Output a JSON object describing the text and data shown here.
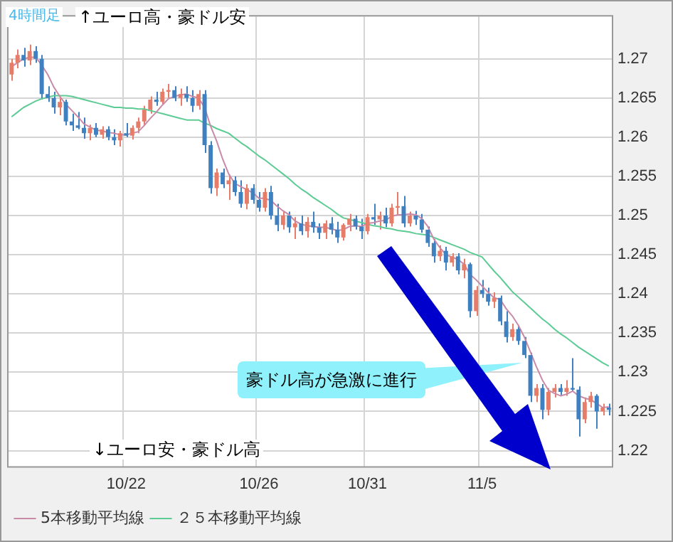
{
  "chart_data": {
    "type": "candlestick",
    "categories": [
      null,
      null,
      null,
      null,
      null,
      null,
      null,
      null,
      null,
      null,
      null,
      null,
      null,
      null,
      null,
      null,
      null,
      null,
      null,
      "10/22",
      null,
      null,
      null,
      null,
      null,
      null,
      null,
      null,
      null,
      null,
      null,
      null,
      null,
      null,
      null,
      null,
      null,
      null,
      null,
      null,
      null,
      "10/26",
      null,
      null,
      null,
      null,
      null,
      null,
      null,
      null,
      null,
      null,
      null,
      null,
      null,
      null,
      null,
      null,
      null,
      "10/31",
      null,
      null,
      null,
      null,
      null,
      null,
      null,
      null,
      null,
      null,
      null,
      null,
      null,
      null,
      null,
      null,
      null,
      null,
      "11/5",
      null,
      null,
      null,
      null,
      null,
      null,
      null,
      null,
      null,
      null,
      null,
      null,
      null,
      null,
      null,
      null,
      null,
      null,
      null,
      null,
      null
    ],
    "ohlc": [
      [
        1.268,
        1.27,
        1.2672,
        1.2695
      ],
      [
        1.2695,
        1.2712,
        1.2688,
        1.2705
      ],
      [
        1.2705,
        1.2714,
        1.269,
        1.2698
      ],
      [
        1.2698,
        1.2718,
        1.2692,
        1.271
      ],
      [
        1.271,
        1.2716,
        1.2695,
        1.27
      ],
      [
        1.27,
        1.2705,
        1.2648,
        1.2655
      ],
      [
        1.2655,
        1.2665,
        1.2645,
        1.265
      ],
      [
        1.265,
        1.2658,
        1.263,
        1.2638
      ],
      [
        1.2638,
        1.2652,
        1.2628,
        1.2645
      ],
      [
        1.2645,
        1.2648,
        1.2615,
        1.262
      ],
      [
        1.262,
        1.263,
        1.2608,
        1.2615
      ],
      [
        1.2615,
        1.2632,
        1.261,
        1.2612
      ],
      [
        1.2612,
        1.2625,
        1.2598,
        1.2605
      ],
      [
        1.2605,
        1.2616,
        1.2596,
        1.2612
      ],
      [
        1.2612,
        1.2618,
        1.26,
        1.2603
      ],
      [
        1.2603,
        1.2614,
        1.2598,
        1.261
      ],
      [
        1.261,
        1.2614,
        1.2596,
        1.26
      ],
      [
        1.26,
        1.261,
        1.259,
        1.2596
      ],
      [
        1.2596,
        1.2608,
        1.2588,
        1.2605
      ],
      [
        1.2605,
        1.2618,
        1.26,
        1.2602
      ],
      [
        1.2602,
        1.2615,
        1.2597,
        1.2612
      ],
      [
        1.2612,
        1.2625,
        1.2605,
        1.262
      ],
      [
        1.262,
        1.264,
        1.2615,
        1.2635
      ],
      [
        1.2635,
        1.2652,
        1.263,
        1.2648
      ],
      [
        1.2648,
        1.2658,
        1.264,
        1.2645
      ],
      [
        1.2645,
        1.2662,
        1.2642,
        1.2658
      ],
      [
        1.2658,
        1.2668,
        1.265,
        1.266
      ],
      [
        1.266,
        1.2665,
        1.2646,
        1.265
      ],
      [
        1.265,
        1.2662,
        1.264,
        1.2655
      ],
      [
        1.2655,
        1.2665,
        1.2645,
        1.265
      ],
      [
        1.265,
        1.266,
        1.2632,
        1.264
      ],
      [
        1.264,
        1.266,
        1.2635,
        1.2655
      ],
      [
        1.2655,
        1.266,
        1.258,
        1.259
      ],
      [
        1.259,
        1.2595,
        1.2528,
        1.2535
      ],
      [
        1.2535,
        1.256,
        1.2525,
        1.2555
      ],
      [
        1.2555,
        1.256,
        1.2535,
        1.254
      ],
      [
        1.254,
        1.2552,
        1.252,
        1.2545
      ],
      [
        1.2545,
        1.255,
        1.2525,
        1.253
      ],
      [
        1.253,
        1.2545,
        1.251,
        1.2515
      ],
      [
        1.2515,
        1.254,
        1.2508,
        1.2535
      ],
      [
        1.2535,
        1.254,
        1.2515,
        1.252
      ],
      [
        1.252,
        1.253,
        1.2505,
        1.251
      ],
      [
        1.251,
        1.2535,
        1.2505,
        1.253
      ],
      [
        1.253,
        1.2538,
        1.2495,
        1.25
      ],
      [
        1.25,
        1.2515,
        1.248,
        1.2488
      ],
      [
        1.2488,
        1.2505,
        1.2482,
        1.25
      ],
      [
        1.25,
        1.2505,
        1.2478,
        1.2485
      ],
      [
        1.2485,
        1.2498,
        1.247,
        1.249
      ],
      [
        1.249,
        1.25,
        1.2475,
        1.248
      ],
      [
        1.248,
        1.2498,
        1.2472,
        1.2492
      ],
      [
        1.2492,
        1.2505,
        1.2478,
        1.2485
      ],
      [
        1.2485,
        1.249,
        1.247,
        1.2478
      ],
      [
        1.2478,
        1.2494,
        1.247,
        1.249
      ],
      [
        1.249,
        1.2498,
        1.2476,
        1.2482
      ],
      [
        1.2482,
        1.2492,
        1.2465,
        1.2472
      ],
      [
        1.2472,
        1.249,
        1.2468,
        1.2488
      ],
      [
        1.2488,
        1.2502,
        1.248,
        1.2496
      ],
      [
        1.2496,
        1.25,
        1.2482,
        1.2486
      ],
      [
        1.2486,
        1.2496,
        1.247,
        1.248
      ],
      [
        1.248,
        1.2502,
        1.2476,
        1.2498
      ],
      [
        1.2498,
        1.2515,
        1.2488,
        1.2495
      ],
      [
        1.2495,
        1.2505,
        1.2482,
        1.25
      ],
      [
        1.25,
        1.251,
        1.2485,
        1.249
      ],
      [
        1.249,
        1.2515,
        1.2486,
        1.251
      ],
      [
        1.251,
        1.253,
        1.25,
        1.2512
      ],
      [
        1.2512,
        1.2525,
        1.2485,
        1.249
      ],
      [
        1.249,
        1.2505,
        1.2486,
        1.25
      ],
      [
        1.25,
        1.2506,
        1.2488,
        1.2495
      ],
      [
        1.2495,
        1.2502,
        1.2478,
        1.2482
      ],
      [
        1.2482,
        1.2486,
        1.246,
        1.2465
      ],
      [
        1.2465,
        1.247,
        1.244,
        1.2448
      ],
      [
        1.2448,
        1.2462,
        1.2442,
        1.2455
      ],
      [
        1.2455,
        1.246,
        1.243,
        1.244
      ],
      [
        1.244,
        1.2452,
        1.2435,
        1.2448
      ],
      [
        1.2448,
        1.2452,
        1.2425,
        1.243
      ],
      [
        1.243,
        1.2445,
        1.242,
        1.2438
      ],
      [
        1.2438,
        1.244,
        1.237,
        1.2378
      ],
      [
        1.2378,
        1.241,
        1.2372,
        1.2405
      ],
      [
        1.2405,
        1.2418,
        1.2395,
        1.24
      ],
      [
        1.24,
        1.2408,
        1.2385,
        1.239
      ],
      [
        1.239,
        1.2402,
        1.2382,
        1.2395
      ],
      [
        1.2395,
        1.2398,
        1.236,
        1.2365
      ],
      [
        1.2365,
        1.2378,
        1.2338,
        1.2345
      ],
      [
        1.2345,
        1.2362,
        1.234,
        1.2355
      ],
      [
        1.2355,
        1.236,
        1.2335,
        1.234
      ],
      [
        1.234,
        1.2345,
        1.2318,
        1.2322
      ],
      [
        1.2322,
        1.2325,
        1.2262,
        1.227
      ],
      [
        1.227,
        1.2285,
        1.2262,
        1.228
      ],
      [
        1.228,
        1.2285,
        1.224,
        1.2252
      ],
      [
        1.2252,
        1.228,
        1.2245,
        1.2275
      ],
      [
        1.2275,
        1.2285,
        1.2268,
        1.228
      ],
      [
        1.228,
        1.2285,
        1.227,
        1.2275
      ],
      [
        1.2275,
        1.229,
        1.227,
        1.228
      ],
      [
        1.228,
        1.2318,
        1.2275,
        1.2278
      ],
      [
        1.2278,
        1.2282,
        1.2218,
        1.224
      ],
      [
        1.224,
        1.2268,
        1.2235,
        1.2262
      ],
      [
        1.2262,
        1.2275,
        1.2255,
        1.227
      ],
      [
        1.227,
        1.2272,
        1.2228,
        1.225
      ],
      [
        1.225,
        1.226,
        1.2245,
        1.2255
      ],
      [
        1.2255,
        1.226,
        1.2245,
        1.2252
      ]
    ],
    "colors": [
      "#e67c6a",
      "#e67c6a",
      "#3f80c0",
      "#e67c6a",
      "#3f80c0",
      "#3f80c0",
      "#3f80c0",
      "#3f80c0",
      "#e67c6a",
      "#3f80c0",
      "#3f80c0",
      "#3f80c0",
      "#3f80c0",
      "#e67c6a",
      "#3f80c0",
      "#e67c6a",
      "#3f80c0",
      "#3f80c0",
      "#e67c6a",
      "#3f80c0",
      "#e67c6a",
      "#e67c6a",
      "#e67c6a",
      "#e67c6a",
      "#3f80c0",
      "#e67c6a",
      "#e67c6a",
      "#3f80c0",
      "#e67c6a",
      "#3f80c0",
      "#3f80c0",
      "#e67c6a",
      "#3f80c0",
      "#3f80c0",
      "#e67c6a",
      "#3f80c0",
      "#e67c6a",
      "#3f80c0",
      "#3f80c0",
      "#e67c6a",
      "#3f80c0",
      "#3f80c0",
      "#e67c6a",
      "#3f80c0",
      "#3f80c0",
      "#e67c6a",
      "#3f80c0",
      "#e67c6a",
      "#3f80c0",
      "#e67c6a",
      "#3f80c0",
      "#3f80c0",
      "#e67c6a",
      "#3f80c0",
      "#3f80c0",
      "#e67c6a",
      "#e67c6a",
      "#3f80c0",
      "#3f80c0",
      "#e67c6a",
      "#3f80c0",
      "#e67c6a",
      "#3f80c0",
      "#e67c6a",
      "#e67c6a",
      "#3f80c0",
      "#e67c6a",
      "#3f80c0",
      "#3f80c0",
      "#3f80c0",
      "#3f80c0",
      "#e67c6a",
      "#3f80c0",
      "#e67c6a",
      "#3f80c0",
      "#e67c6a",
      "#3f80c0",
      "#e67c6a",
      "#3f80c0",
      "#3f80c0",
      "#e67c6a",
      "#3f80c0",
      "#3f80c0",
      "#e67c6a",
      "#3f80c0",
      "#3f80c0",
      "#3f80c0",
      "#e67c6a",
      "#3f80c0",
      "#e67c6a",
      "#e67c6a",
      "#3f80c0",
      "#e67c6a",
      "#3f80c0",
      "#3f80c0",
      "#e67c6a",
      "#e67c6a",
      "#3f80c0",
      "#e67c6a",
      "#3f80c0"
    ],
    "series": [
      {
        "name": "5本移動平均線",
        "type": "line",
        "color": "#c98aa8",
        "values": [
          1.269,
          1.2695,
          1.27,
          1.2702,
          1.2702,
          1.2692,
          1.268,
          1.2664,
          1.2652,
          1.2642,
          1.2634,
          1.2626,
          1.2617,
          1.2613,
          1.2609,
          1.2608,
          1.2606,
          1.2605,
          1.2603,
          1.2603,
          1.2605,
          1.2607,
          1.2615,
          1.2624,
          1.2632,
          1.2641,
          1.2649,
          1.2652,
          1.2654,
          1.2655,
          1.2652,
          1.265,
          1.2638,
          1.2614,
          1.2595,
          1.2572,
          1.2553,
          1.2541,
          1.2537,
          1.2533,
          1.2529,
          1.2522,
          1.2522,
          1.2519,
          1.2512,
          1.2506,
          1.2501,
          1.2493,
          1.2489,
          1.2487,
          1.2486,
          1.2485,
          1.2485,
          1.2483,
          1.2481,
          1.2482,
          1.2486,
          1.2487,
          1.2486,
          1.249,
          1.2491,
          1.2493,
          1.2494,
          1.2499,
          1.2501,
          1.2501,
          1.2502,
          1.2501,
          1.2496,
          1.2486,
          1.247,
          1.2459,
          1.245,
          1.2447,
          1.2444,
          1.2438,
          1.2425,
          1.2418,
          1.241,
          1.2402,
          1.2395,
          1.2393,
          1.2381,
          1.2372,
          1.236,
          1.2345,
          1.2326,
          1.2307,
          1.229,
          1.2277,
          1.2273,
          1.227,
          1.2272,
          1.2276,
          1.227,
          1.2267,
          1.2265,
          1.226,
          1.2255,
          1.2256
        ]
      },
      {
        "name": "２５本移動平均線",
        "type": "line",
        "color": "#5ccb94",
        "values": [
          1.2626,
          1.2632,
          1.2638,
          1.2642,
          1.2646,
          1.2649,
          1.2651,
          1.2653,
          1.2653,
          1.2653,
          1.2652,
          1.265,
          1.2648,
          1.2646,
          1.2644,
          1.2642,
          1.264,
          1.2638,
          1.2638,
          1.2637,
          1.2637,
          1.2636,
          1.2636,
          1.2634,
          1.2632,
          1.263,
          1.2628,
          1.2626,
          1.2624,
          1.2622,
          1.2622,
          1.2622,
          1.2618,
          1.2615,
          1.2611,
          1.2608,
          1.2605,
          1.2599,
          1.2593,
          1.2588,
          1.2582,
          1.2576,
          1.2571,
          1.2565,
          1.2559,
          1.2553,
          1.2547,
          1.254,
          1.2534,
          1.2529,
          1.2523,
          1.2518,
          1.2513,
          1.2508,
          1.2502,
          1.2497,
          1.2495,
          1.2493,
          1.2491,
          1.2489,
          1.2487,
          1.2486,
          1.2484,
          1.2483,
          1.2481,
          1.248,
          1.2479,
          1.2477,
          1.2476,
          1.2475,
          1.2472,
          1.2469,
          1.2466,
          1.2463,
          1.246,
          1.2457,
          1.2453,
          1.245,
          1.2447,
          1.2438,
          1.2429,
          1.2421,
          1.2412,
          1.2403,
          1.2396,
          1.2389,
          1.2382,
          1.2375,
          1.2368,
          1.2362,
          1.2355,
          1.2349,
          1.2344,
          1.2338,
          1.2332,
          1.2327,
          1.2322,
          1.2317,
          1.2312,
          1.2308
        ]
      }
    ],
    "ylim": [
      1.218,
      1.2754
    ],
    "yticks": [
      1.22,
      1.225,
      1.23,
      1.235,
      1.24,
      1.245,
      1.25,
      1.255,
      1.26,
      1.265,
      1.27
    ],
    "grid": true,
    "legend": "bottom left",
    "marker": "none",
    "annotations": [
      "4時間足",
      "↑ユーロ高・豪ドル安",
      "↓ユーロ安・豪ドル高",
      "豪ドル高が急激に進行"
    ]
  }
}
